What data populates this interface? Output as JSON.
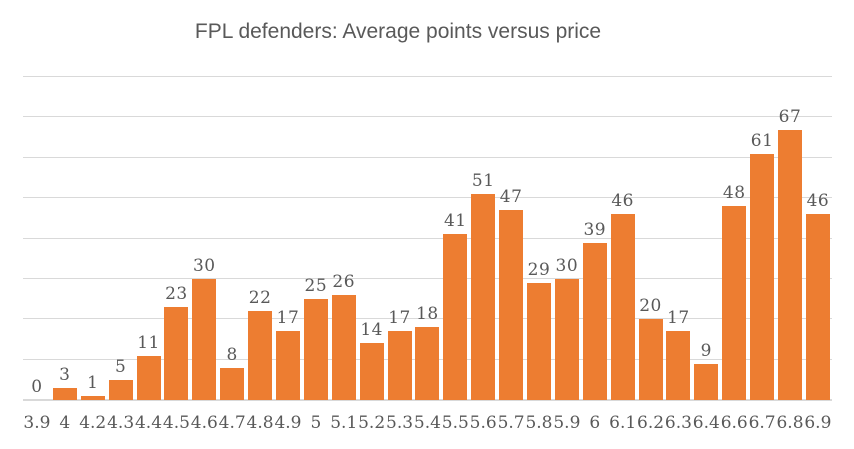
{
  "colors": {
    "bar": "#ED7D31",
    "text": "#595959",
    "gridline": "#D9D9D9",
    "background": "#FFFFFF"
  },
  "chart_data": {
    "type": "bar",
    "title": "FPL defenders: Average points versus price",
    "categories": [
      "3.9",
      "4",
      "4.2",
      "4.3",
      "4.4",
      "4.5",
      "4.6",
      "4.7",
      "4.8",
      "4.9",
      "5",
      "5.1",
      "5.2",
      "5.3",
      "5.4",
      "5.5",
      "5.6",
      "5.7",
      "5.8",
      "5.9",
      "6",
      "6.1",
      "6.2",
      "6.3",
      "6.4",
      "6.6",
      "6.7",
      "6.8",
      "6.9"
    ],
    "values": [
      0,
      3,
      1,
      5,
      11,
      23,
      30,
      8,
      22,
      17,
      25,
      26,
      14,
      17,
      18,
      41,
      51,
      47,
      29,
      30,
      39,
      46,
      20,
      17,
      9,
      48,
      61,
      67,
      46
    ],
    "xlabel": "",
    "ylabel": "",
    "ylim": [
      0,
      80
    ],
    "gridline_step": 10,
    "grid": true,
    "legend": "none",
    "data_labels": true,
    "y_tick_labels_visible": false
  }
}
